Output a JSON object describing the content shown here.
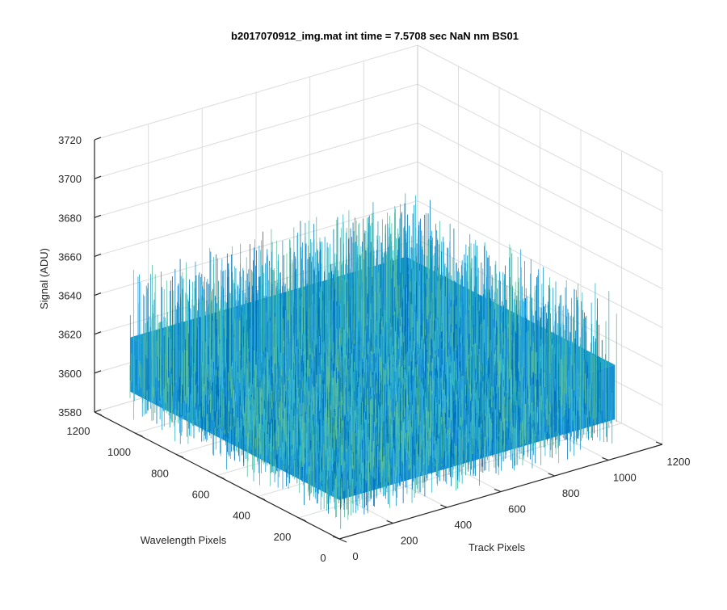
{
  "chart_data": {
    "type": "surface",
    "title": "b2017070912_img.mat int time = 7.5708 sec  NaN nm BS01",
    "xlabel": "Track Pixels",
    "ylabel": "Wavelength Pixels",
    "zlabel": "Signal (ADU)",
    "xlim": [
      0,
      1200
    ],
    "ylim": [
      0,
      1200
    ],
    "zlim": [
      3580,
      3720
    ],
    "x_ticks": [
      "0",
      "200",
      "400",
      "600",
      "800",
      "1000",
      "1200"
    ],
    "y_ticks": [
      "0",
      "200",
      "400",
      "600",
      "800",
      "1000",
      "1200"
    ],
    "z_ticks": [
      "3580",
      "3600",
      "3620",
      "3640",
      "3660",
      "3680",
      "3700",
      "3720"
    ],
    "surface_extent": {
      "x": [
        0,
        1024
      ],
      "y": [
        0,
        1024
      ]
    },
    "mean_signal": 3610,
    "noise_range": [
      3585,
      3665
    ],
    "colormap": [
      "#0072bd",
      "#1e9bd7",
      "#2fb5c8",
      "#5cc0a0"
    ],
    "grid": true
  }
}
